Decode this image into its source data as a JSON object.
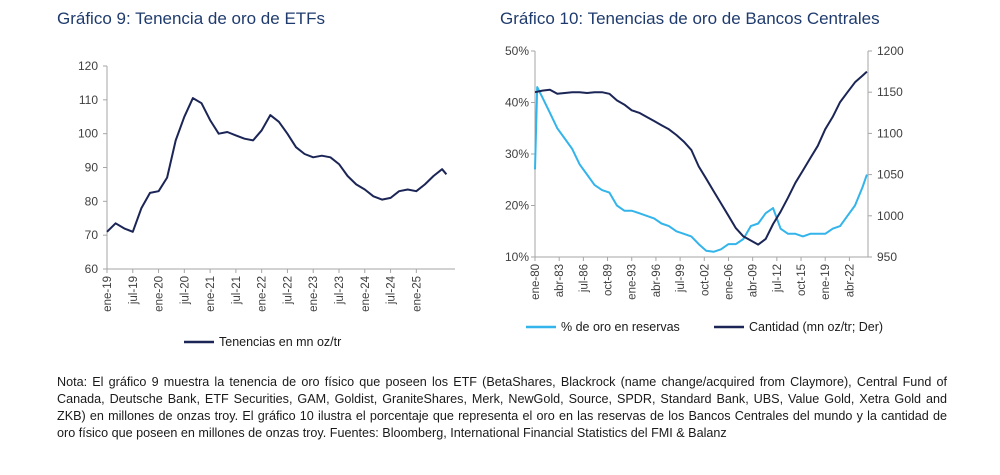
{
  "colors": {
    "dark_navy": "#1b2556",
    "light_blue": "#33b4ea",
    "title": "#1f3b6e",
    "axis": "#a6a6a6"
  },
  "chart_data": [
    {
      "type": "line",
      "title": "Gráfico 9: Tenencia de oro de ETFs",
      "xlabel": "",
      "ylabel": "",
      "ylim": [
        60,
        120
      ],
      "yticks": [
        "60",
        "70",
        "80",
        "90",
        "100",
        "110",
        "120"
      ],
      "xticks": [
        "ene-19",
        "jul-19",
        "ene-20",
        "jul-20",
        "ene-21",
        "jul-21",
        "ene-22",
        "jul-22",
        "ene-23",
        "jul-23",
        "ene-24",
        "jul-24",
        "ene-25"
      ],
      "legend_position": "bottom",
      "series": [
        {
          "name": "Tenencias en mn oz/tr",
          "x": [
            "2019-01",
            "2019-03",
            "2019-05",
            "2019-07",
            "2019-09",
            "2019-11",
            "2020-01",
            "2020-03",
            "2020-05",
            "2020-07",
            "2020-09",
            "2020-11",
            "2021-01",
            "2021-03",
            "2021-05",
            "2021-07",
            "2021-09",
            "2021-11",
            "2022-01",
            "2022-03",
            "2022-05",
            "2022-07",
            "2022-09",
            "2022-11",
            "2023-01",
            "2023-03",
            "2023-05",
            "2023-07",
            "2023-09",
            "2023-11",
            "2024-01",
            "2024-03",
            "2024-05",
            "2024-07",
            "2024-09",
            "2024-11",
            "2025-01",
            "2025-03",
            "2025-05",
            "2025-07",
            "2025-08"
          ],
          "values": [
            71,
            73.5,
            72,
            71,
            78,
            82.5,
            83,
            87,
            98,
            105,
            110.5,
            109,
            104,
            100,
            100.5,
            99.5,
            98.5,
            98,
            101,
            105.5,
            103.5,
            100,
            96,
            94,
            93,
            93.5,
            93,
            91,
            87.5,
            85,
            83.5,
            81.5,
            80.5,
            81,
            83,
            83.5,
            83,
            85,
            87.5,
            89.5,
            88
          ]
        }
      ]
    },
    {
      "type": "line",
      "title": "Gráfico 10: Tenencias de oro de Bancos Centrales",
      "xlabel": "",
      "ylabel": "",
      "ylim_left": [
        0.1,
        0.5
      ],
      "ylim_right": [
        950,
        1200
      ],
      "yticks_left": [
        "10%",
        "20%",
        "30%",
        "40%",
        "50%"
      ],
      "yticks_right": [
        "950",
        "1000",
        "1050",
        "1100",
        "1150",
        "1200"
      ],
      "xticks": [
        "ene-80",
        "abr-83",
        "jul-86",
        "oct-89",
        "ene-93",
        "abr-96",
        "jul-99",
        "oct-02",
        "ene-06",
        "abr-09",
        "jul-12",
        "oct-15",
        "ene-19",
        "abr-22"
      ],
      "legend_position": "bottom",
      "series": [
        {
          "name": "% de oro en reservas",
          "axis": "left",
          "x": [
            1980,
            1980.3,
            1981,
            1982,
            1983,
            1984,
            1985,
            1986,
            1987,
            1988,
            1989,
            1990,
            1991,
            1992,
            1993,
            1994,
            1995,
            1996,
            1997,
            1998,
            1999,
            2000,
            2001,
            2002,
            2003,
            2004,
            2005,
            2006,
            2007,
            2008,
            2009,
            2010,
            2011,
            2012,
            2013,
            2014,
            2015,
            2016,
            2017,
            2018,
            2019,
            2020,
            2021,
            2022,
            2023,
            2024,
            2024.6
          ],
          "values": [
            0.27,
            0.43,
            0.41,
            0.38,
            0.35,
            0.33,
            0.31,
            0.28,
            0.26,
            0.24,
            0.23,
            0.225,
            0.2,
            0.19,
            0.19,
            0.185,
            0.18,
            0.175,
            0.165,
            0.16,
            0.15,
            0.145,
            0.14,
            0.125,
            0.112,
            0.11,
            0.115,
            0.125,
            0.125,
            0.135,
            0.16,
            0.165,
            0.185,
            0.195,
            0.155,
            0.145,
            0.145,
            0.14,
            0.145,
            0.145,
            0.145,
            0.155,
            0.16,
            0.18,
            0.2,
            0.235,
            0.26
          ]
        },
        {
          "name": "Cantidad (mn oz/tr; Der)",
          "axis": "right",
          "x": [
            1980,
            1981,
            1982,
            1983,
            1984,
            1985,
            1986,
            1987,
            1988,
            1989,
            1990,
            1991,
            1992,
            1993,
            1994,
            1995,
            1996,
            1997,
            1998,
            1999,
            2000,
            2001,
            2002,
            2003,
            2004,
            2005,
            2006,
            2007,
            2008,
            2009,
            2010,
            2011,
            2012,
            2013,
            2014,
            2015,
            2016,
            2017,
            2018,
            2019,
            2020,
            2021,
            2022,
            2023,
            2024,
            2024.6
          ],
          "values": [
            1150,
            1152,
            1153,
            1148,
            1149,
            1150,
            1150,
            1149,
            1150,
            1150,
            1148,
            1140,
            1135,
            1128,
            1125,
            1120,
            1115,
            1110,
            1105,
            1098,
            1090,
            1080,
            1060,
            1045,
            1030,
            1015,
            1000,
            985,
            975,
            970,
            965,
            972,
            990,
            1005,
            1022,
            1040,
            1055,
            1070,
            1085,
            1105,
            1120,
            1138,
            1150,
            1162,
            1170,
            1175
          ]
        }
      ]
    }
  ],
  "note": "Nota: El gráfico 9 muestra la tenencia de oro físico que poseen los ETF (BetaShares, Blackrock (name change/acquired from Claymore), Central Fund of Canada, Deutsche Bank, ETF Securities, GAM, Goldist, GraniteShares, Merk, NewGold, Source, SPDR, Standard Bank, UBS, Value Gold, Xetra Gold and ZKB) en millones de onzas troy. El gráfico 10 ilustra el porcentaje que representa el oro en las reservas de los Bancos Centrales del mundo y la cantidad de oro físico que poseen en millones de onzas troy. Fuentes: Bloomberg, International Financial Statistics del FMI & Balanz"
}
